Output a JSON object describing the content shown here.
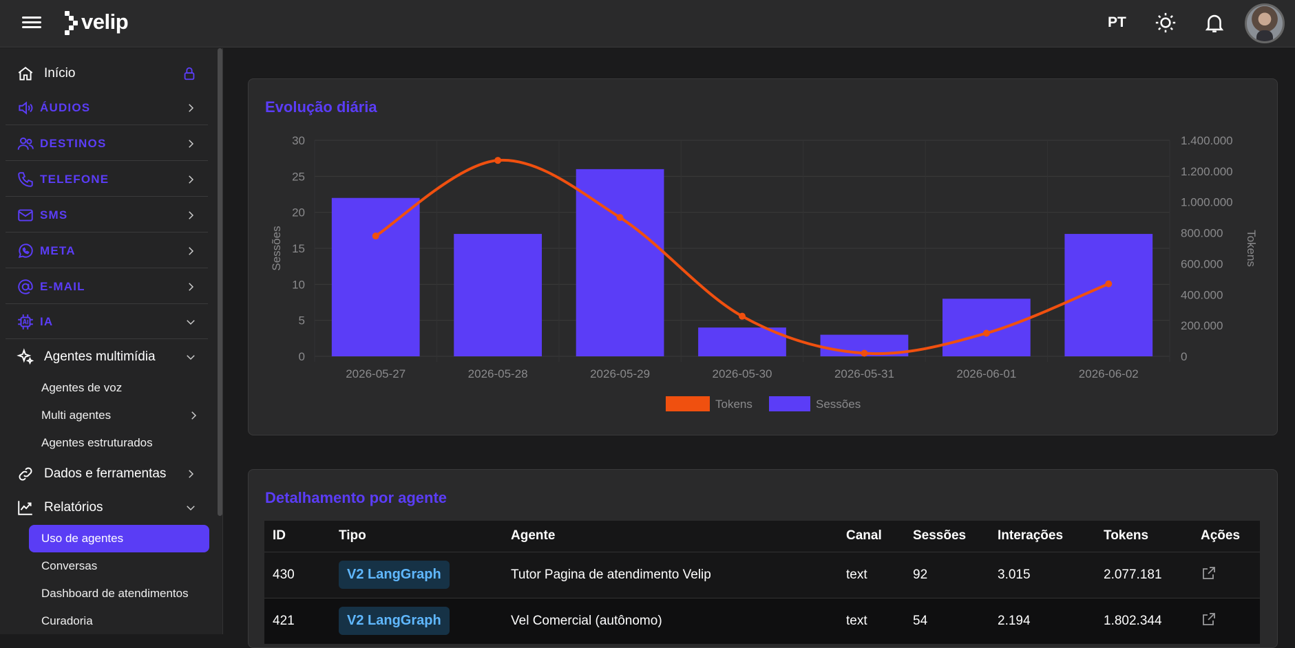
{
  "topbar": {
    "logo_text": "velip",
    "language": "PT",
    "icons": [
      "menu-icon",
      "sun-icon",
      "bell-icon"
    ],
    "colors": {
      "background": "#2a2a2b",
      "accent": "#5b3df7"
    }
  },
  "sidebar": {
    "items": [
      {
        "label": "Início",
        "icon": "home-icon",
        "trailing": "lock-icon"
      },
      {
        "label": "ÁUDIOS",
        "icon": "speaker-icon",
        "trailing": "chevron-right-icon"
      },
      {
        "label": "DESTINOS",
        "icon": "users-icon",
        "trailing": "chevron-right-icon"
      },
      {
        "label": "TELEFONE",
        "icon": "phone-icon",
        "trailing": "chevron-right-icon"
      },
      {
        "label": "SMS",
        "icon": "mail-icon",
        "trailing": "chevron-right-icon"
      },
      {
        "label": "META",
        "icon": "whatsapp-icon",
        "trailing": "chevron-right-icon"
      },
      {
        "label": "E-MAIL",
        "icon": "at-icon",
        "trailing": "chevron-right-icon"
      },
      {
        "label": "IA",
        "icon": "ai-chip-icon",
        "trailing": "chevron-down-icon"
      },
      {
        "label": "Agentes multimídia",
        "icon": "sparkles-icon",
        "trailing": "chevron-down-icon"
      },
      {
        "label": "Dados e ferramentas",
        "icon": "link-icon",
        "trailing": "chevron-right-icon"
      },
      {
        "label": "Relatórios",
        "icon": "chart-line-icon",
        "trailing": "chevron-down-icon"
      }
    ],
    "sub_agents": [
      "Agentes de voz",
      "Multi agentes",
      "Agentes estruturados"
    ],
    "sub_reports": [
      "Uso de agentes",
      "Conversas",
      "Dashboard de atendimentos",
      "Curadoria"
    ],
    "active_item": "Uso de agentes"
  },
  "daily_card": {
    "title": "Evolução diária"
  },
  "chart_data": {
    "type": "bar",
    "categories": [
      "2026-05-27",
      "2026-05-28",
      "2026-05-29",
      "2026-05-30",
      "2026-05-31",
      "2026-06-01",
      "2026-06-02"
    ],
    "series": [
      {
        "name": "Sessões",
        "type": "bar",
        "axis": "left",
        "color": "#5b3df7",
        "values": [
          22,
          17,
          26,
          4,
          3,
          8,
          17
        ]
      },
      {
        "name": "Tokens",
        "type": "line",
        "axis": "right",
        "color": "#f0500f",
        "values": [
          780000,
          1270000,
          900000,
          260000,
          20000,
          150000,
          470000
        ]
      }
    ],
    "ylabel": "Sessões",
    "ylabel_right": "Tokens",
    "ylim": [
      0,
      30
    ],
    "ylim_right": [
      0,
      1400000
    ],
    "yticks": [
      "0",
      "5",
      "10",
      "15",
      "20",
      "25",
      "30"
    ],
    "yticks_right": [
      "0",
      "200.000",
      "400.000",
      "600.000",
      "800.000",
      "1.000.000",
      "1.200.000",
      "1.400.000"
    ],
    "legend": [
      "Tokens",
      "Sessões"
    ],
    "legend_position": "bottom",
    "grid": true
  },
  "agents_card": {
    "title": "Detalhamento por agente",
    "columns": [
      "ID",
      "Tipo",
      "Agente",
      "Canal",
      "Sessões",
      "Interações",
      "Tokens",
      "Ações"
    ],
    "rows": [
      {
        "id": "430",
        "tipo": "V2 LangGraph",
        "agente": "Tutor Pagina de atendimento Velip",
        "canal": "text",
        "sessoes": "92",
        "interacoes": "3.015",
        "tokens": "2.077.181",
        "acao_icon": "external-link-icon"
      },
      {
        "id": "421",
        "tipo": "V2 LangGraph",
        "agente": "Vel Comercial (autônomo)",
        "canal": "text",
        "sessoes": "54",
        "interacoes": "2.194",
        "tokens": "1.802.344",
        "acao_icon": "external-link-icon"
      }
    ]
  }
}
